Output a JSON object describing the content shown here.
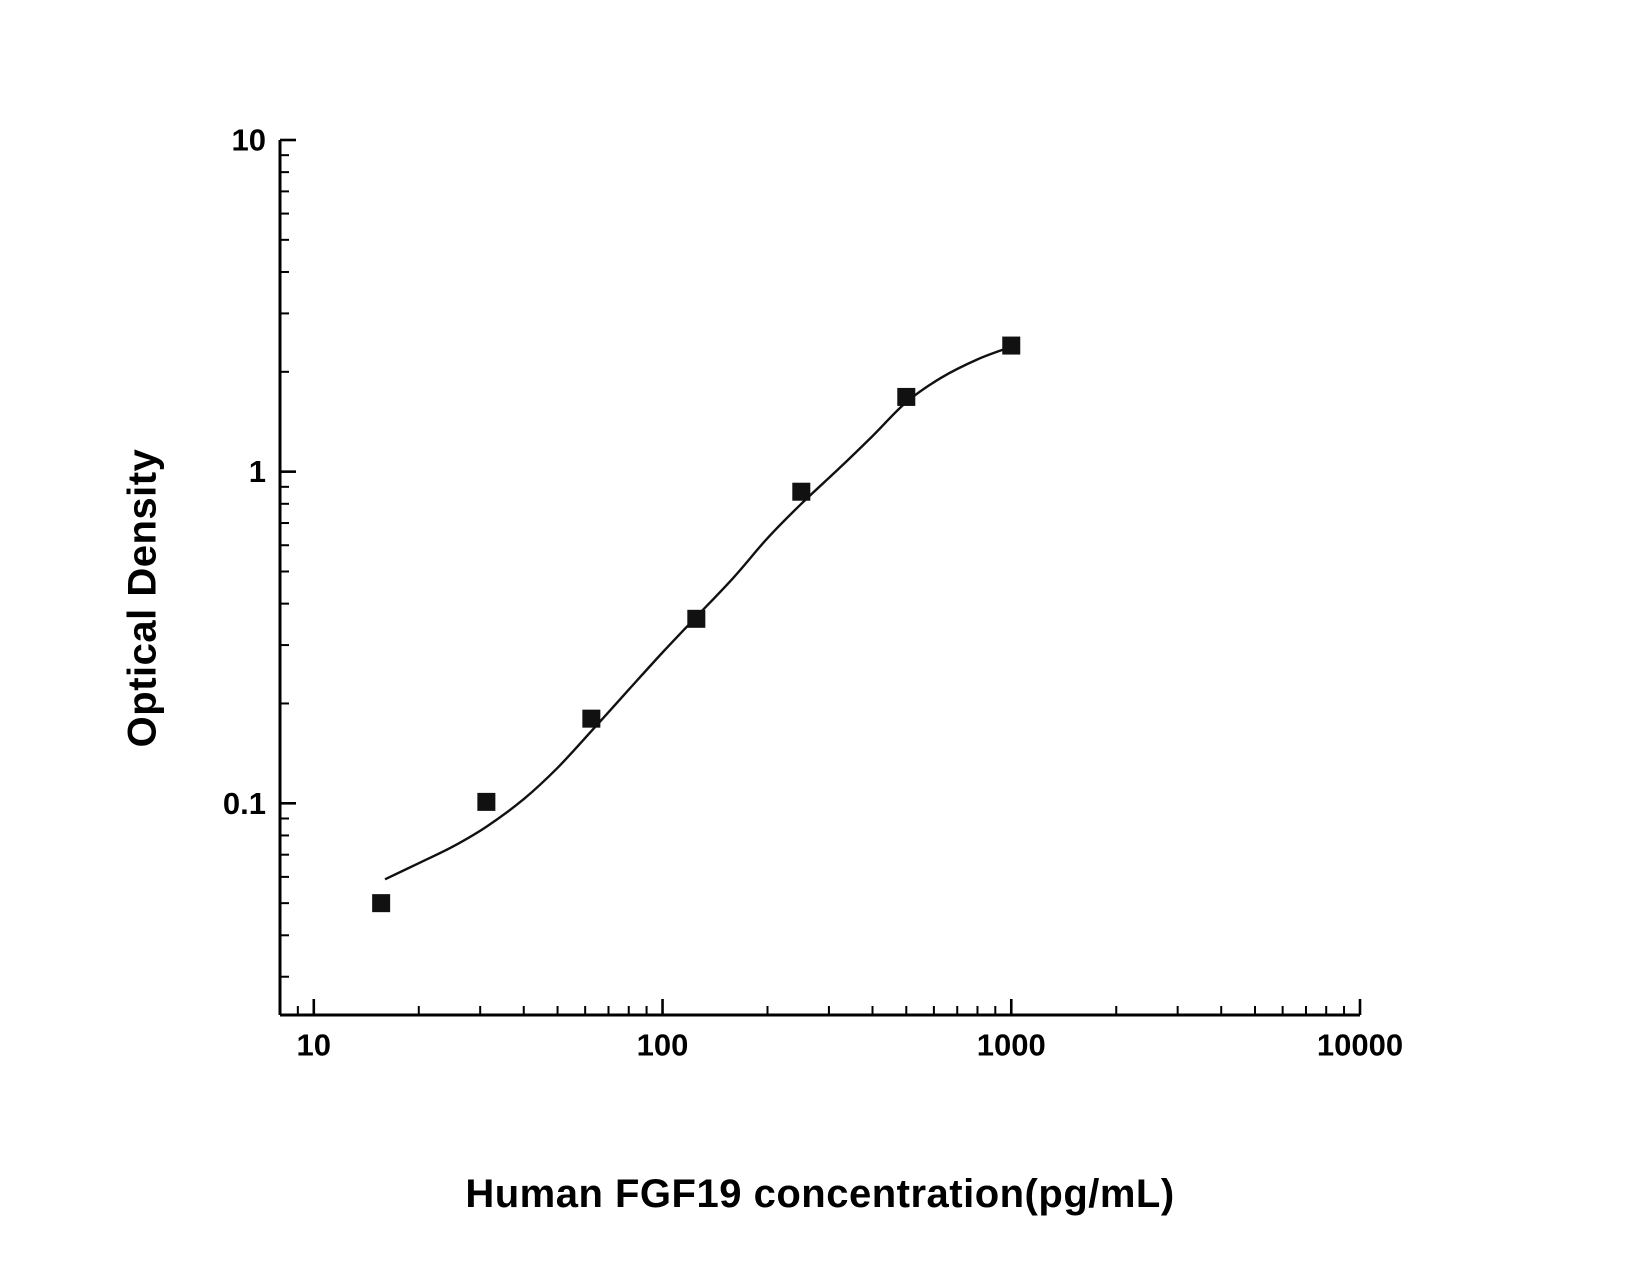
{
  "chart_data": {
    "type": "scatter",
    "title": "",
    "xlabel": "Human FGF19 concentration(pg/mL)",
    "ylabel": "Optical Density",
    "xscale": "log",
    "yscale": "log",
    "xlim": [
      8,
      10000
    ],
    "ylim": [
      0.023,
      10
    ],
    "grid": false,
    "legend": "none",
    "marker": "filled-square",
    "line_color": "#111111",
    "marker_color": "#111111",
    "axis_color": "#000000",
    "x_major_ticks": [
      10,
      100,
      1000,
      10000
    ],
    "x_tick_labels": [
      "10",
      "100",
      "1000",
      "10000"
    ],
    "y_major_ticks": [
      0.1,
      1,
      10
    ],
    "y_tick_labels": [
      "0.1",
      "1",
      "10"
    ],
    "points": [
      [
        15.6,
        0.05
      ],
      [
        31.25,
        0.101
      ],
      [
        62.5,
        0.18
      ],
      [
        125,
        0.36
      ],
      [
        250,
        0.87
      ],
      [
        500,
        1.68
      ],
      [
        1000,
        2.4
      ]
    ],
    "curve": [
      [
        16,
        0.059
      ],
      [
        20,
        0.066
      ],
      [
        25,
        0.074
      ],
      [
        31.25,
        0.085
      ],
      [
        40,
        0.103
      ],
      [
        50,
        0.128
      ],
      [
        62.5,
        0.165
      ],
      [
        80,
        0.22
      ],
      [
        100,
        0.285
      ],
      [
        125,
        0.365
      ],
      [
        160,
        0.48
      ],
      [
        200,
        0.63
      ],
      [
        250,
        0.8
      ],
      [
        320,
        1.02
      ],
      [
        400,
        1.28
      ],
      [
        500,
        1.62
      ],
      [
        630,
        1.92
      ],
      [
        800,
        2.18
      ],
      [
        1000,
        2.38
      ]
    ]
  }
}
